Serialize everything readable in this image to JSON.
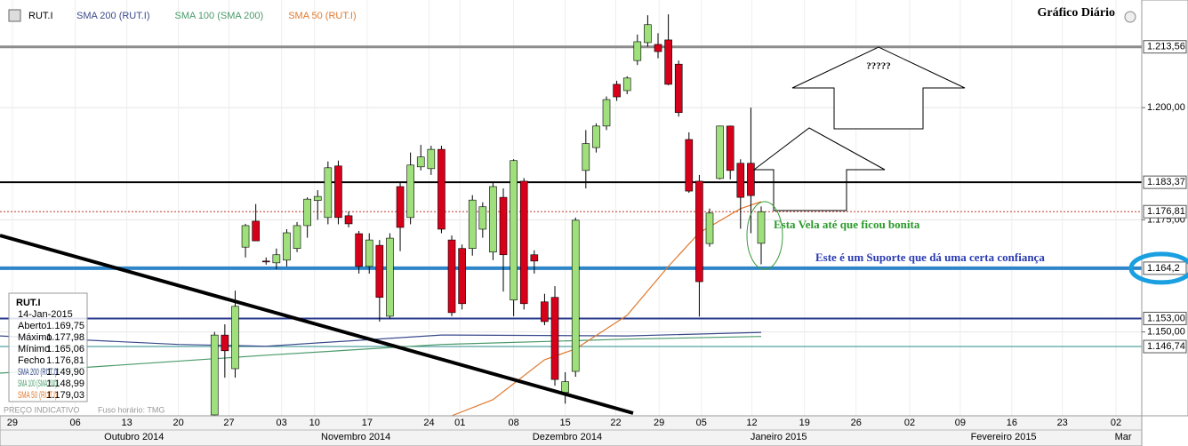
{
  "chart_data": {
    "type": "candlestick",
    "title": "Gráfico Diário",
    "symbol": "RUT.I",
    "xlim": [
      -20.8,
      89.9
    ],
    "ylim": [
      1131.3,
      1224
    ],
    "yticks": [
      {
        "value": 1200,
        "label": "1.200,00"
      },
      {
        "value": 1175,
        "label": "1.175,00"
      },
      {
        "value": 1150,
        "label": "1.150,00"
      }
    ],
    "xticks": [
      {
        "value": -19.6,
        "label": "29"
      },
      {
        "value": -13.5,
        "label": "06"
      },
      {
        "value": -8.5,
        "label": "13"
      },
      {
        "value": -3.5,
        "label": "20"
      },
      {
        "value": 1.4,
        "label": "27"
      },
      {
        "value": 6.5,
        "label": "03"
      },
      {
        "value": 9.7,
        "label": "10"
      },
      {
        "value": 14.8,
        "label": "17"
      },
      {
        "value": 20.8,
        "label": "24"
      },
      {
        "value": 23.8,
        "label": "01"
      },
      {
        "value": 29,
        "label": "08"
      },
      {
        "value": 34,
        "label": "15"
      },
      {
        "value": 38.9,
        "label": "22"
      },
      {
        "value": 43.1,
        "label": "29"
      },
      {
        "value": 47.2,
        "label": "05"
      },
      {
        "value": 52.1,
        "label": "12"
      },
      {
        "value": 57.2,
        "label": "19"
      },
      {
        "value": 62.2,
        "label": "26"
      },
      {
        "value": 67.4,
        "label": "02"
      },
      {
        "value": 72.3,
        "label": "09"
      },
      {
        "value": 77.3,
        "label": "16"
      },
      {
        "value": 82.2,
        "label": "23"
      },
      {
        "value": 87.4,
        "label": "02"
      }
    ],
    "months": [
      {
        "value": -7.8,
        "label": "Outubro 2014"
      },
      {
        "value": 13.7,
        "label": "Novembro 2014"
      },
      {
        "value": 34.2,
        "label": "Dezembro 2014"
      },
      {
        "value": 54.7,
        "label": "Janeiro 2015"
      },
      {
        "value": 76.5,
        "label": "Fevereiro 2015"
      },
      {
        "value": 88.1,
        "label": "Mar"
      }
    ],
    "up_color": "#9fe07c",
    "down_color": "#d7001b",
    "open": [
      1131.5,
      1149.3,
      1141.8,
      1168.9,
      1174.7,
      1165.8,
      1165.4,
      1166,
      1168.6,
      1173.7,
      1179.3,
      1175.5,
      1187,
      1175.9,
      1171.9,
      1164.6,
      1169.3,
      1153.5,
      1182.4,
      1175.5,
      1186.8,
      1186.4,
      1190.7,
      1170.5,
      1168.6,
      1168.6,
      1172.9,
      1167.8,
      1180,
      1157.1,
      1183.6,
      1167.2,
      1156.7,
      1157.7,
      1136.5,
      1141.2,
      1186,
      1191.1,
      1195.9,
      1205.2,
      1203.8,
      1210.5,
      1214.5,
      1214.1,
      1215.1,
      1209.7,
      1192.9,
      1183.6,
      1169.7,
      1184.2,
      1195.9,
      1187.6,
      1187.6,
      1169.75
    ],
    "high": [
      1150,
      1151.7,
      1159.2,
      1174.1,
      1178.5,
      1166.6,
      1168.6,
      1172.9,
      1174.5,
      1180,
      1181.6,
      1188,
      1188.2,
      1176.9,
      1172.5,
      1172,
      1170.5,
      1172,
      1183.5,
      1190,
      1191.7,
      1191.5,
      1191.5,
      1171.5,
      1169.5,
      1180.5,
      1178.9,
      1183.3,
      1182,
      1188.5,
      1184.3,
      1168.2,
      1158.5,
      1160.2,
      1141,
      1175.5,
      1195,
      1196.5,
      1202.5,
      1206,
      1207,
      1216.3,
      1220.6,
      1216.6,
      1220.8,
      1210.5,
      1194.5,
      1185,
      1177.5,
      1196,
      1196,
      1188.5,
      1200,
      1177.98
    ],
    "low": [
      1131,
      1139.8,
      1139.8,
      1166.6,
      1170.3,
      1165,
      1164,
      1164.6,
      1167.8,
      1171,
      1175,
      1174,
      1174,
      1173.3,
      1163,
      1163,
      1152.3,
      1153,
      1168,
      1174,
      1186,
      1185,
      1172,
      1153.5,
      1155,
      1167,
      1171,
      1166,
      1159,
      1153.5,
      1155,
      1163,
      1151.5,
      1138,
      1134,
      1140,
      1182,
      1190,
      1195,
      1201.5,
      1203,
      1209.5,
      1213.6,
      1211,
      1205,
      1198,
      1181,
      1153.4,
      1169,
      1184,
      1184,
      1173,
      1172,
      1165.06
    ],
    "close": [
      1149.3,
      1145.8,
      1155.7,
      1173.7,
      1170.3,
      1165.6,
      1167.2,
      1172.1,
      1173.7,
      1179.6,
      1180.2,
      1186.6,
      1175.5,
      1174.1,
      1164.6,
      1170.5,
      1157.7,
      1170.9,
      1173.3,
      1187.2,
      1189,
      1190.7,
      1172.9,
      1154.3,
      1156.3,
      1179.4,
      1177.9,
      1182.4,
      1167.2,
      1188.2,
      1156.3,
      1165.8,
      1152.3,
      1139.4,
      1138.9,
      1174.9,
      1192,
      1195.9,
      1201.8,
      1202.4,
      1206.6,
      1214.7,
      1218.5,
      1212.5,
      1205.2,
      1198.9,
      1181.4,
      1161.2,
      1176.5,
      1195.9,
      1186,
      1180,
      1180.4,
      1176.81
    ],
    "series": [
      {
        "name": "SMA 200 (RUT.I)",
        "color": "#3a4a8c",
        "x": [
          -20.8,
          -3.5,
          5,
          22,
          40,
          53
        ],
        "values": [
          1149.1,
          1147.2,
          1146.8,
          1149.3,
          1149.1,
          1149.9
        ],
        "value_label": "1.149,90"
      },
      {
        "name": "SMA 100 (SMA 200)",
        "color": "#4a9a6a",
        "x": [
          -20.8,
          5,
          22,
          40,
          53
        ],
        "values": [
          1140.8,
          1144.8,
          1147.2,
          1148.4,
          1148.99
        ],
        "value_label": "1.148,99"
      },
      {
        "name": "SMA 50 (RUT.I)",
        "color": "#e07a30",
        "x": [
          23,
          27,
          32,
          35,
          40,
          44,
          47,
          51,
          53
        ],
        "values": [
          1131.3,
          1134.9,
          1143.8,
          1146.2,
          1153.7,
          1164.6,
          1172.1,
          1177.5,
          1179.03
        ],
        "value_label": "1.179,03"
      }
    ],
    "price_lines": [
      {
        "value": 1213.56,
        "label": "1.213,56",
        "color": "#8c8c8c",
        "width": 3
      },
      {
        "value": 1183.37,
        "label": "1.183,37",
        "color": "#000000",
        "width": 2
      },
      {
        "value": 1176.81,
        "label": "1.176,81",
        "color": "#c0392b",
        "width": 1
      },
      {
        "value": 1164.2,
        "label": "1.164,2",
        "color": "#2e86c9",
        "width": 4
      },
      {
        "value": 1153,
        "label": "1.153,00",
        "color": "#2a3a8c",
        "width": 2
      },
      {
        "value": 1146.74,
        "label": "1.146,74",
        "color": "#2a8a8a",
        "width": 1
      }
    ],
    "info": {
      "date": "14-Jan-2015",
      "rows": [
        [
          "Aberto",
          "1.169,75"
        ],
        [
          "Máximo",
          "1.177,98"
        ],
        [
          "Mínimo",
          "1.165,06"
        ],
        [
          "Fecho",
          "1.176,81"
        ]
      ]
    },
    "annotations": [
      "?????",
      "Esta Vela até que ficou bonita",
      "Este é um Suporte que dá uma certa confiança"
    ],
    "footer": [
      "PREÇO INDICATIVO",
      "Fuso horário: TMG"
    ]
  }
}
